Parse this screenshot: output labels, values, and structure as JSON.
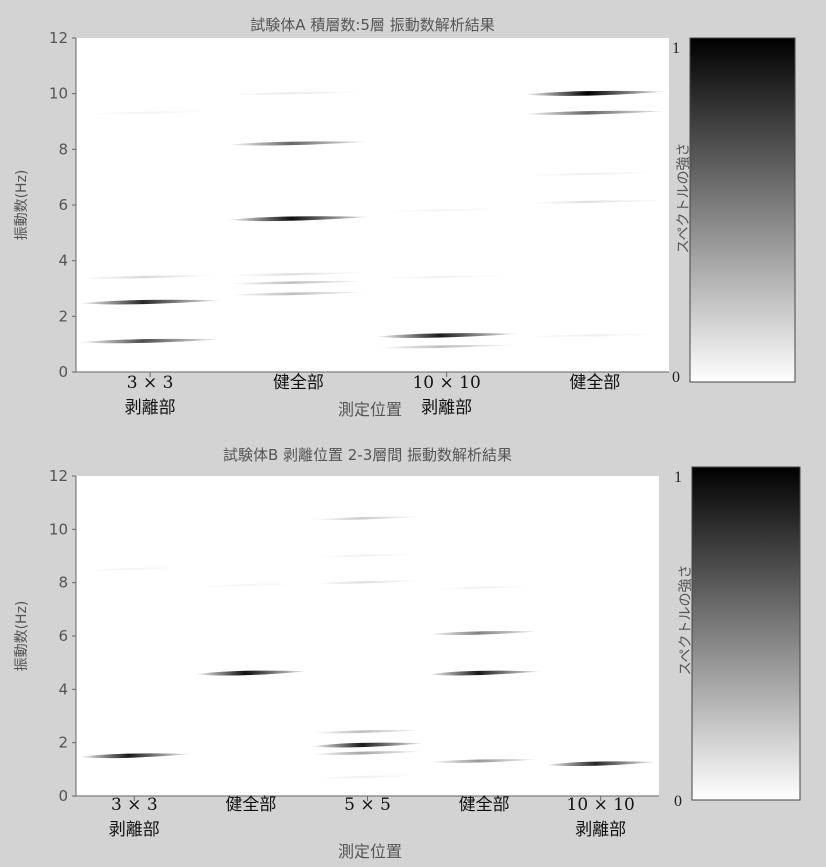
{
  "chart_data": [
    {
      "type": "heatmap",
      "title": "試験体A 積層数:5層 振動数解析結果",
      "xlabel": "測定位置",
      "ylabel": "振動数(Hz)",
      "ylim": [
        0,
        12
      ],
      "yticks": [
        "0",
        "2",
        "4",
        "6",
        "8",
        "10",
        "12"
      ],
      "categories": [
        {
          "line1": "3 × 3",
          "line2": "剥離部"
        },
        {
          "line1": "健全部",
          "line2": ""
        },
        {
          "line1": "10 × 10",
          "line2": "剥離部"
        },
        {
          "line1": "健全部",
          "line2": ""
        }
      ],
      "peaks": [
        {
          "category": 0,
          "frequency": 1.1,
          "intensity": 0.7
        },
        {
          "category": 0,
          "frequency": 2.5,
          "intensity": 0.85
        },
        {
          "category": 0,
          "frequency": 3.4,
          "intensity": 0.15
        },
        {
          "category": 0,
          "frequency": 9.3,
          "intensity": 0.04
        },
        {
          "category": 1,
          "frequency": 2.8,
          "intensity": 0.25
        },
        {
          "category": 1,
          "frequency": 3.2,
          "intensity": 0.25
        },
        {
          "category": 1,
          "frequency": 3.5,
          "intensity": 0.12
        },
        {
          "category": 1,
          "frequency": 5.5,
          "intensity": 0.95
        },
        {
          "category": 1,
          "frequency": 8.2,
          "intensity": 0.6
        },
        {
          "category": 1,
          "frequency": 10.0,
          "intensity": 0.08
        },
        {
          "category": 2,
          "frequency": 0.9,
          "intensity": 0.25
        },
        {
          "category": 2,
          "frequency": 1.3,
          "intensity": 0.9
        },
        {
          "category": 2,
          "frequency": 3.4,
          "intensity": 0.05
        },
        {
          "category": 2,
          "frequency": 5.8,
          "intensity": 0.04
        },
        {
          "category": 3,
          "frequency": 1.3,
          "intensity": 0.06
        },
        {
          "category": 3,
          "frequency": 6.1,
          "intensity": 0.12
        },
        {
          "category": 3,
          "frequency": 7.1,
          "intensity": 0.06
        },
        {
          "category": 3,
          "frequency": 9.3,
          "intensity": 0.6
        },
        {
          "category": 3,
          "frequency": 10.0,
          "intensity": 1.0
        }
      ],
      "colorbar": {
        "label": "スペクトルの強さ",
        "min_label": "0",
        "max_label": "1"
      }
    },
    {
      "type": "heatmap",
      "title": "試験体B 剥離位置 2-3層間 振動数解析結果",
      "xlabel": "測定位置",
      "ylabel": "振動数(Hz)",
      "ylim": [
        0,
        12
      ],
      "yticks": [
        "0",
        "2",
        "4",
        "6",
        "8",
        "10",
        "12"
      ],
      "categories": [
        {
          "line1": "3 × 3",
          "line2": "剥離部"
        },
        {
          "line1": "健全部",
          "line2": ""
        },
        {
          "line1": "5 × 5",
          "line2": ""
        },
        {
          "line1": "健全部",
          "line2": ""
        },
        {
          "line1": "10 × 10",
          "line2": "剥離部"
        }
      ],
      "peaks": [
        {
          "category": 0,
          "frequency": 1.5,
          "intensity": 0.9
        },
        {
          "category": 0,
          "frequency": 8.5,
          "intensity": 0.04
        },
        {
          "category": 1,
          "frequency": 4.6,
          "intensity": 0.95
        },
        {
          "category": 1,
          "frequency": 7.9,
          "intensity": 0.04
        },
        {
          "category": 2,
          "frequency": 0.7,
          "intensity": 0.05
        },
        {
          "category": 2,
          "frequency": 1.6,
          "intensity": 0.35
        },
        {
          "category": 2,
          "frequency": 1.9,
          "intensity": 0.9
        },
        {
          "category": 2,
          "frequency": 2.4,
          "intensity": 0.25
        },
        {
          "category": 2,
          "frequency": 8.0,
          "intensity": 0.12
        },
        {
          "category": 2,
          "frequency": 9.0,
          "intensity": 0.05
        },
        {
          "category": 2,
          "frequency": 10.4,
          "intensity": 0.2
        },
        {
          "category": 3,
          "frequency": 1.3,
          "intensity": 0.4
        },
        {
          "category": 3,
          "frequency": 4.6,
          "intensity": 0.9
        },
        {
          "category": 3,
          "frequency": 6.1,
          "intensity": 0.5
        },
        {
          "category": 3,
          "frequency": 7.8,
          "intensity": 0.05
        },
        {
          "category": 4,
          "frequency": 1.2,
          "intensity": 0.85
        }
      ],
      "colorbar": {
        "label": "スペクトルの強さ",
        "min_label": "0",
        "max_label": "1"
      }
    }
  ]
}
